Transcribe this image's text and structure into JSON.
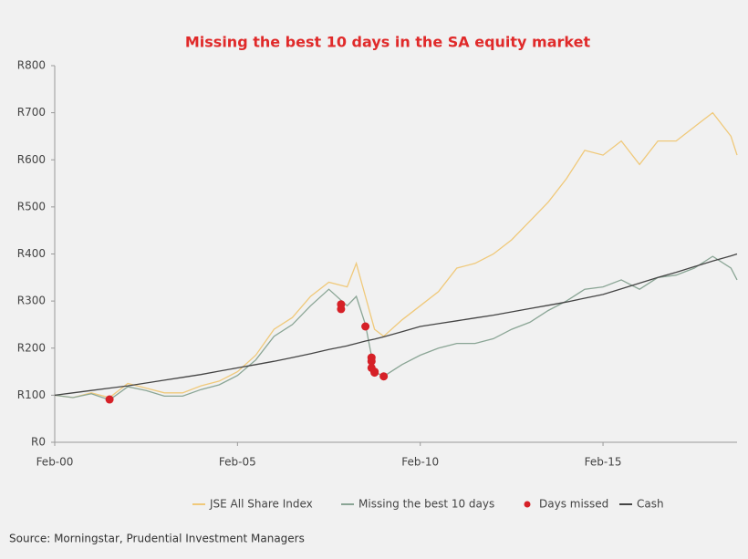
{
  "chart_data": {
    "type": "line",
    "title": "Missing the best 10 days in the SA equity market",
    "source": "Source: Morningstar, Prudential Investment Managers",
    "x": [
      "2000-02",
      "2000-08",
      "2001-02",
      "2001-08",
      "2002-02",
      "2002-08",
      "2003-02",
      "2003-08",
      "2004-02",
      "2004-08",
      "2005-02",
      "2005-08",
      "2006-02",
      "2006-08",
      "2007-02",
      "2007-08",
      "2008-02",
      "2008-05",
      "2008-08",
      "2008-11",
      "2009-02",
      "2009-08",
      "2010-02",
      "2010-08",
      "2011-02",
      "2011-08",
      "2012-02",
      "2012-08",
      "2013-02",
      "2013-08",
      "2014-02",
      "2014-08",
      "2015-02",
      "2015-08",
      "2016-02",
      "2016-08",
      "2017-02",
      "2017-08",
      "2018-02",
      "2018-08",
      "2018-10"
    ],
    "series": [
      {
        "name": "JSE All Share Index",
        "color": "#f0c97a",
        "values": [
          100,
          95,
          105,
          95,
          125,
          115,
          105,
          105,
          120,
          130,
          150,
          185,
          240,
          265,
          310,
          340,
          330,
          380,
          310,
          240,
          225,
          260,
          290,
          320,
          370,
          380,
          400,
          430,
          470,
          510,
          560,
          620,
          610,
          640,
          590,
          640,
          640,
          670,
          700,
          650,
          610
        ]
      },
      {
        "name": "Missing the best 10 days",
        "color": "#8aa595",
        "values": [
          100,
          95,
          103,
          90,
          118,
          110,
          98,
          98,
          112,
          122,
          142,
          175,
          225,
          250,
          290,
          325,
          290,
          310,
          250,
          150,
          140,
          165,
          185,
          200,
          210,
          210,
          220,
          240,
          255,
          280,
          300,
          325,
          330,
          345,
          325,
          350,
          355,
          370,
          395,
          370,
          345
        ]
      },
      {
        "name": "Days missed",
        "type": "scatter",
        "color": "#d62027",
        "x": [
          "2001-08",
          "2007-12",
          "2007-12",
          "2008-08",
          "2008-10",
          "2008-10",
          "2008-10",
          "2008-11",
          "2008-11",
          "2009-02"
        ],
        "values": [
          91,
          293,
          283,
          246,
          180,
          172,
          158,
          150,
          148,
          140
        ]
      },
      {
        "name": "Cash",
        "color": "#444444",
        "values": [
          100,
          105,
          110,
          115,
          120,
          126,
          132,
          138,
          144,
          151,
          158,
          165,
          172,
          180,
          188,
          197,
          205,
          210,
          215,
          219,
          224,
          235,
          246,
          252,
          258,
          264,
          270,
          277,
          284,
          291,
          298,
          306,
          314,
          326,
          338,
          350,
          361,
          373,
          385,
          396,
          400
        ]
      }
    ],
    "xlim": [
      "2000-02",
      "2018-10"
    ],
    "xticks": [
      {
        "value": "2000-02",
        "label": "Feb-00"
      },
      {
        "value": "2005-02",
        "label": "Feb-05"
      },
      {
        "value": "2010-02",
        "label": "Feb-10"
      },
      {
        "value": "2015-02",
        "label": "Feb-15"
      }
    ],
    "ylim": [
      0,
      800
    ],
    "yticks": [
      {
        "value": 0,
        "label": "R0"
      },
      {
        "value": 100,
        "label": "R100"
      },
      {
        "value": 200,
        "label": "R200"
      },
      {
        "value": 300,
        "label": "R300"
      },
      {
        "value": 400,
        "label": "R400"
      },
      {
        "value": 500,
        "label": "R500"
      },
      {
        "value": 600,
        "label": "R600"
      },
      {
        "value": 700,
        "label": "R700"
      },
      {
        "value": 800,
        "label": "R800"
      }
    ],
    "grid": false,
    "legend": "bottom"
  }
}
